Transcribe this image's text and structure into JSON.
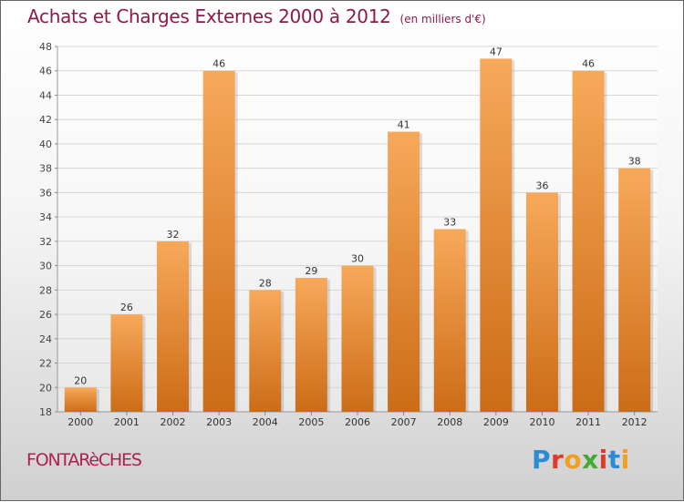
{
  "header": {
    "title": "Achats et Charges Externes 2000 à 2012",
    "unit": "(en milliers d'€)"
  },
  "footer": {
    "commune": "FONTARèCHES",
    "brand": "Proxiti"
  },
  "colors": {
    "bar_light": "#f7a95a",
    "bar_dark": "#cc6c17",
    "title": "#8c1a4a",
    "commune": "#b02050",
    "brand_letters": [
      "#2a8dd4",
      "#e03a2c",
      "#f0a020",
      "#44aa33",
      "#e03a2c",
      "#2a8dd4",
      "#f0a020"
    ]
  },
  "chart_data": {
    "type": "bar",
    "title": "Achats et Charges Externes 2000 à 2012",
    "subtitle": "(en milliers d'€)",
    "xlabel": "",
    "ylabel": "",
    "categories": [
      "2000",
      "2001",
      "2002",
      "2003",
      "2004",
      "2005",
      "2006",
      "2007",
      "2008",
      "2009",
      "2010",
      "2011",
      "2012"
    ],
    "values": [
      20,
      26,
      32,
      46,
      28,
      29,
      30,
      41,
      33,
      47,
      36,
      46,
      38
    ],
    "ylim": [
      18,
      48
    ],
    "yticks": [
      18,
      20,
      22,
      24,
      26,
      28,
      30,
      32,
      34,
      36,
      38,
      40,
      42,
      44,
      46,
      48
    ],
    "grid": true,
    "data_labels": true
  }
}
